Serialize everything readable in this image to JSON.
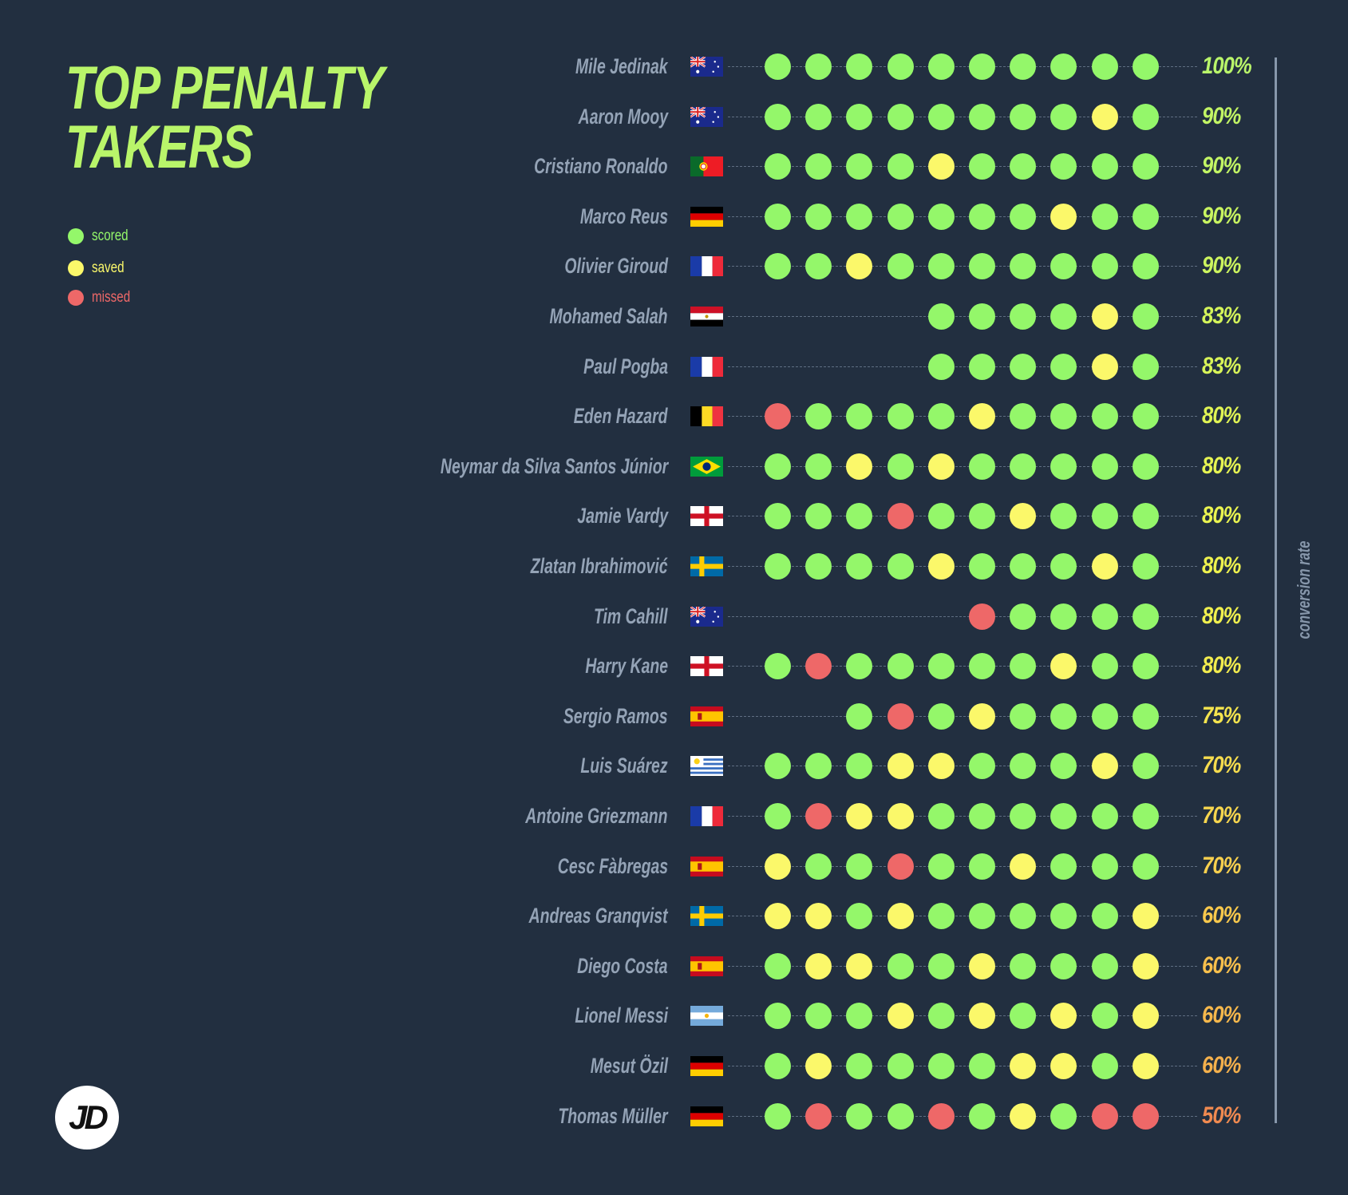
{
  "title": {
    "line1": "TOP PENALTY",
    "line2": "TAKERS"
  },
  "legend": [
    {
      "key": "g",
      "label": "scored",
      "color": "#94f76a"
    },
    {
      "key": "y",
      "label": "saved",
      "color": "#fbf86a"
    },
    {
      "key": "r",
      "label": "missed",
      "color": "#ee6868"
    }
  ],
  "axis_label": "conversion rate",
  "logo": "JD",
  "chart_data": {
    "type": "dot-matrix",
    "legend_placement": "left",
    "shots_per_row": 10,
    "players": [
      {
        "name": "Mile Jedinak",
        "flag": "au",
        "shots": [
          "g",
          "g",
          "g",
          "g",
          "g",
          "g",
          "g",
          "g",
          "g",
          "g"
        ],
        "rate": "100%",
        "rate_color": "#b9f56a"
      },
      {
        "name": "Aaron Mooy",
        "flag": "au",
        "shots": [
          "g",
          "g",
          "g",
          "g",
          "g",
          "g",
          "g",
          "g",
          "y",
          "g"
        ],
        "rate": "90%",
        "rate_color": "#c2f564"
      },
      {
        "name": "Cristiano Ronaldo",
        "flag": "pt",
        "shots": [
          "g",
          "g",
          "g",
          "g",
          "y",
          "g",
          "g",
          "g",
          "g",
          "g"
        ],
        "rate": "90%",
        "rate_color": "#c2f564"
      },
      {
        "name": "Marco Reus",
        "flag": "de",
        "shots": [
          "g",
          "g",
          "g",
          "g",
          "g",
          "g",
          "g",
          "y",
          "g",
          "g"
        ],
        "rate": "90%",
        "rate_color": "#c8f460"
      },
      {
        "name": "Olivier Giroud",
        "flag": "fr",
        "shots": [
          "g",
          "g",
          "y",
          "g",
          "g",
          "g",
          "g",
          "g",
          "g",
          "g"
        ],
        "rate": "90%",
        "rate_color": "#ccf45e"
      },
      {
        "name": "Mohamed Salah",
        "flag": "eg",
        "shots": [
          null,
          null,
          null,
          null,
          "g",
          "g",
          "g",
          "g",
          "y",
          "g"
        ],
        "rate": "83%",
        "rate_color": "#d4f45a"
      },
      {
        "name": "Paul Pogba",
        "flag": "fr",
        "shots": [
          null,
          null,
          null,
          null,
          "g",
          "g",
          "g",
          "g",
          "y",
          "g"
        ],
        "rate": "83%",
        "rate_color": "#d8f458"
      },
      {
        "name": "Eden Hazard",
        "flag": "be",
        "shots": [
          "r",
          "g",
          "g",
          "g",
          "g",
          "y",
          "g",
          "g",
          "g",
          "g"
        ],
        "rate": "80%",
        "rate_color": "#e0f454"
      },
      {
        "name": "Neymar da Silva Santos Júnior",
        "flag": "br",
        "shots": [
          "g",
          "g",
          "y",
          "g",
          "y",
          "g",
          "g",
          "g",
          "g",
          "g"
        ],
        "rate": "80%",
        "rate_color": "#e6f452"
      },
      {
        "name": "Jamie Vardy",
        "flag": "en",
        "shots": [
          "g",
          "g",
          "g",
          "r",
          "g",
          "g",
          "y",
          "g",
          "g",
          "g"
        ],
        "rate": "80%",
        "rate_color": "#eaf450"
      },
      {
        "name": "Zlatan Ibrahimović",
        "flag": "se",
        "shots": [
          "g",
          "g",
          "g",
          "g",
          "y",
          "g",
          "g",
          "g",
          "y",
          "g"
        ],
        "rate": "80%",
        "rate_color": "#eef24e"
      },
      {
        "name": "Tim Cahill",
        "flag": "au",
        "shots": [
          null,
          null,
          null,
          null,
          null,
          "r",
          "g",
          "g",
          "g",
          "g"
        ],
        "rate": "80%",
        "rate_color": "#f0f04e"
      },
      {
        "name": "Harry Kane",
        "flag": "en",
        "shots": [
          "g",
          "r",
          "g",
          "g",
          "g",
          "g",
          "g",
          "y",
          "g",
          "g"
        ],
        "rate": "80%",
        "rate_color": "#f2ec4e"
      },
      {
        "name": "Sergio Ramos",
        "flag": "es",
        "shots": [
          null,
          null,
          "g",
          "r",
          "g",
          "y",
          "g",
          "g",
          "g",
          "g"
        ],
        "rate": "75%",
        "rate_color": "#f4e44e"
      },
      {
        "name": "Luis Suárez",
        "flag": "uy",
        "shots": [
          "g",
          "g",
          "g",
          "y",
          "y",
          "g",
          "g",
          "g",
          "y",
          "g"
        ],
        "rate": "70%",
        "rate_color": "#f6dc4e"
      },
      {
        "name": "Antoine Griezmann",
        "flag": "fr",
        "shots": [
          "g",
          "r",
          "y",
          "y",
          "g",
          "g",
          "g",
          "g",
          "g",
          "g"
        ],
        "rate": "70%",
        "rate_color": "#f7d64e"
      },
      {
        "name": "Cesc Fàbregas",
        "flag": "es",
        "shots": [
          "y",
          "g",
          "g",
          "r",
          "g",
          "g",
          "y",
          "g",
          "g",
          "g"
        ],
        "rate": "70%",
        "rate_color": "#f8d04e"
      },
      {
        "name": "Andreas Granqvist",
        "flag": "se",
        "shots": [
          "y",
          "y",
          "g",
          "y",
          "g",
          "g",
          "g",
          "g",
          "g",
          "y"
        ],
        "rate": "60%",
        "rate_color": "#f8c84c"
      },
      {
        "name": "Diego Costa",
        "flag": "es",
        "shots": [
          "g",
          "y",
          "y",
          "g",
          "g",
          "y",
          "g",
          "g",
          "g",
          "y"
        ],
        "rate": "60%",
        "rate_color": "#f8c04c"
      },
      {
        "name": "Lionel Messi",
        "flag": "ar",
        "shots": [
          "g",
          "g",
          "g",
          "y",
          "g",
          "y",
          "g",
          "y",
          "g",
          "y"
        ],
        "rate": "60%",
        "rate_color": "#f6b84c"
      },
      {
        "name": "Mesut Özil",
        "flag": "de",
        "shots": [
          "g",
          "y",
          "g",
          "g",
          "g",
          "g",
          "y",
          "y",
          "g",
          "y"
        ],
        "rate": "60%",
        "rate_color": "#f4b04c"
      },
      {
        "name": "Thomas Müller",
        "flag": "de",
        "shots": [
          "g",
          "r",
          "g",
          "g",
          "r",
          "g",
          "y",
          "g",
          "r",
          "r"
        ],
        "rate": "50%",
        "rate_color": "#f08a50"
      }
    ]
  }
}
